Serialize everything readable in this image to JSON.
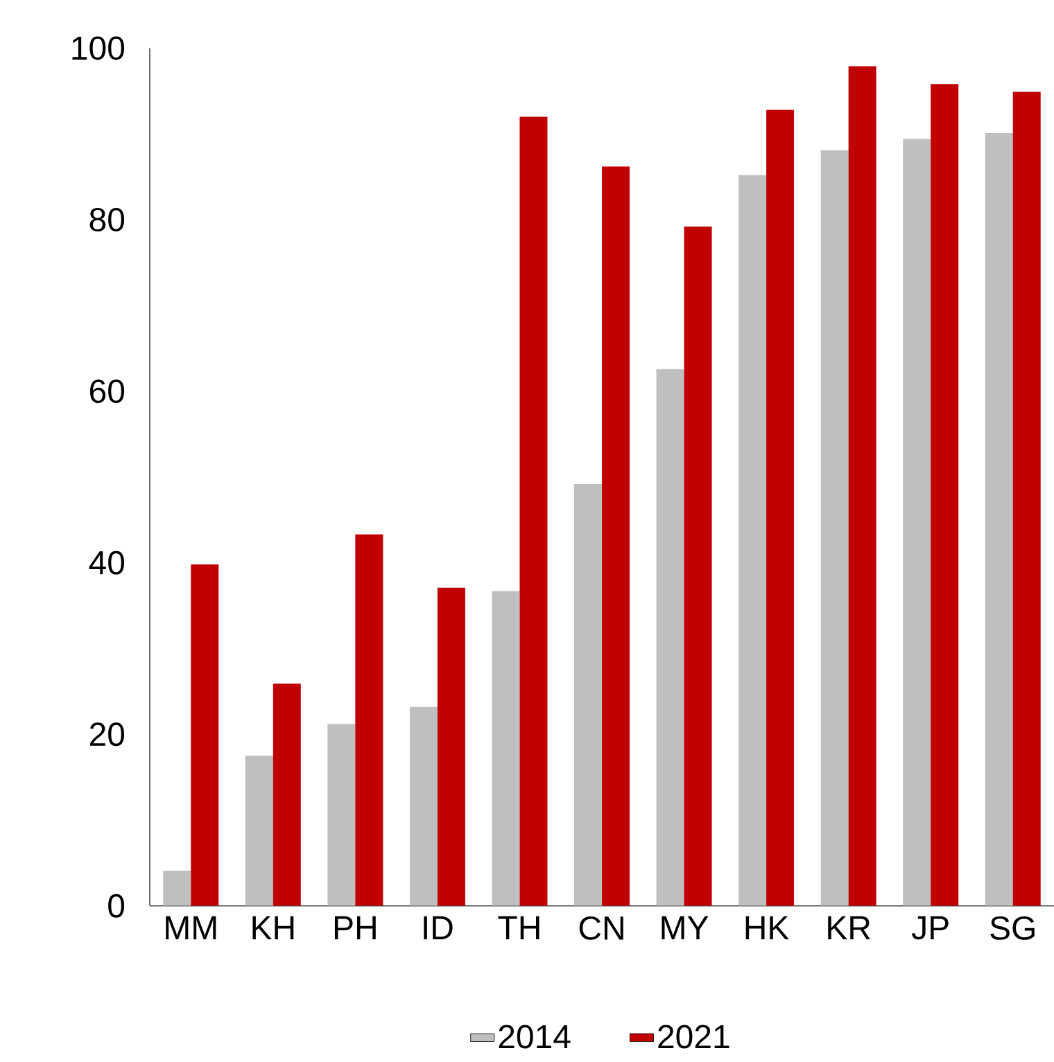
{
  "chart_data": {
    "type": "bar",
    "categories": [
      "MM",
      "KH",
      "PH",
      "ID",
      "TH",
      "CN",
      "MY",
      "HK",
      "KR",
      "JP",
      "SG"
    ],
    "series": [
      {
        "name": "2014",
        "color": "#bfbfbf",
        "values": [
          4.1,
          17.5,
          21.2,
          23.2,
          36.7,
          49.2,
          62.6,
          85.2,
          88.1,
          89.4,
          90.1
        ]
      },
      {
        "name": "2021",
        "color": "#c00000",
        "values": [
          39.8,
          25.9,
          43.3,
          37.1,
          92.0,
          86.2,
          79.2,
          92.8,
          97.9,
          95.8,
          94.9
        ]
      }
    ],
    "ylim": [
      0,
      100
    ],
    "yticks": [
      0,
      20,
      40,
      60,
      80,
      100
    ],
    "grid": false,
    "legend": "bottom"
  }
}
